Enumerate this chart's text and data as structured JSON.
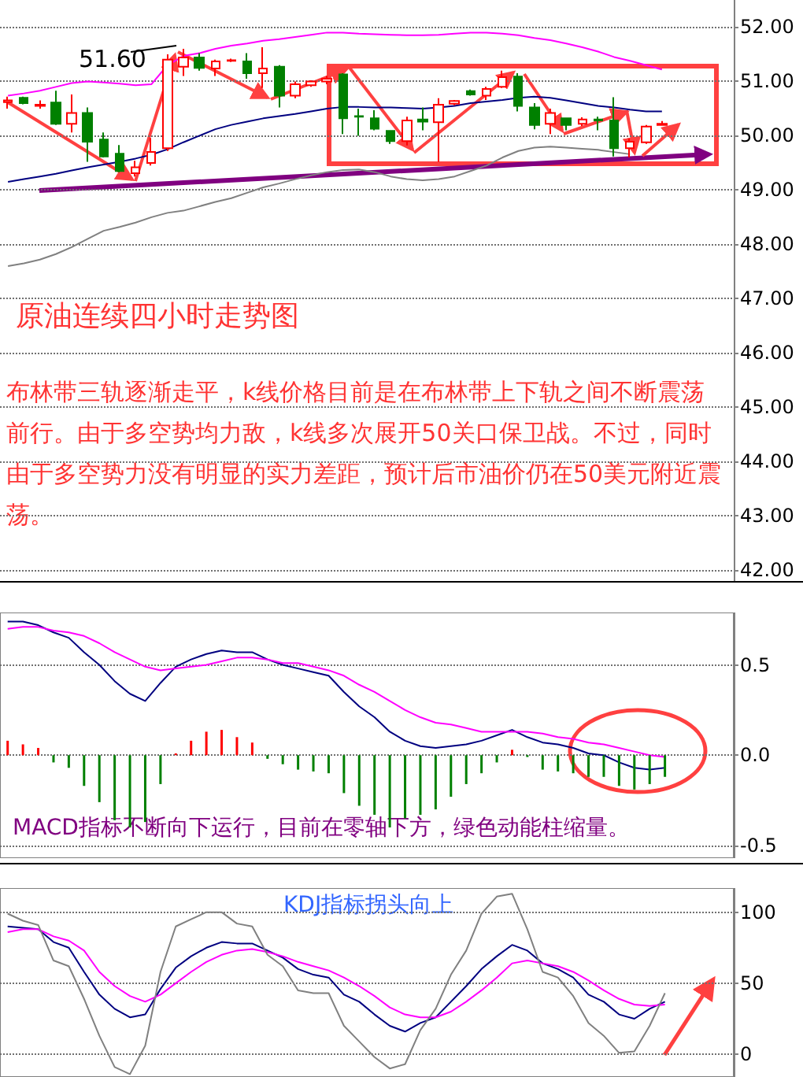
{
  "chart_data": [
    {
      "type": "candlestick",
      "title": "原油连续四小时走势图",
      "annotations": [
        "51.60",
        "布林带三轨逐渐走平，k线价格目前是在布林带上下轨之间不断震荡前行。由于多空势均力敌，k线多次展开50关口保卫战。不过，同时由于多空势力没有明显的实力差距，预计后市油价仍在50美元附近震荡。"
      ],
      "categories": [
        null,
        null,
        null,
        null,
        null,
        null,
        null,
        null,
        null,
        null,
        null,
        null,
        null,
        null,
        null,
        null,
        null,
        null,
        null,
        null,
        null,
        null,
        null,
        null,
        null,
        null,
        null,
        null,
        null,
        null,
        null,
        null,
        null,
        null,
        null,
        null,
        null,
        null,
        null,
        null,
        null,
        null
      ],
      "ohlc": [
        [
          50.62,
          50.72,
          50.5,
          50.65
        ],
        [
          50.7,
          50.72,
          50.58,
          50.6
        ],
        [
          50.55,
          50.65,
          50.5,
          50.57
        ],
        [
          50.61,
          50.83,
          50.2,
          50.22
        ],
        [
          50.22,
          50.76,
          50.06,
          50.42
        ],
        [
          50.42,
          50.52,
          49.52,
          49.89
        ],
        [
          49.93,
          50.06,
          49.6,
          49.62
        ],
        [
          49.67,
          49.83,
          49.33,
          49.35
        ],
        [
          49.31,
          49.54,
          49.25,
          49.42
        ],
        [
          49.5,
          49.96,
          49.45,
          49.7
        ],
        [
          49.77,
          51.5,
          49.72,
          51.4
        ],
        [
          51.27,
          51.6,
          51.1,
          51.44
        ],
        [
          51.44,
          51.52,
          51.2,
          51.25
        ],
        [
          51.24,
          51.4,
          51.1,
          51.37
        ],
        [
          51.38,
          51.42,
          51.36,
          51.39
        ],
        [
          51.37,
          51.52,
          51.05,
          51.15
        ],
        [
          51.15,
          51.63,
          50.88,
          51.24
        ],
        [
          51.27,
          51.3,
          50.52,
          50.74
        ],
        [
          50.74,
          51.0,
          50.69,
          50.95
        ],
        [
          50.93,
          51.02,
          50.9,
          51.0
        ],
        [
          51.0,
          51.1,
          50.95,
          51.05
        ],
        [
          51.13,
          51.15,
          50.03,
          50.32
        ],
        [
          50.36,
          50.5,
          50.0,
          50.35
        ],
        [
          50.32,
          50.47,
          50.1,
          50.13
        ],
        [
          50.09,
          50.1,
          49.85,
          49.9
        ],
        [
          49.9,
          50.35,
          49.82,
          50.28
        ],
        [
          50.3,
          50.52,
          50.1,
          50.26
        ],
        [
          50.25,
          50.69,
          49.52,
          50.57
        ],
        [
          50.59,
          50.66,
          50.56,
          50.64
        ],
        [
          50.82,
          50.85,
          50.74,
          50.76
        ],
        [
          50.74,
          50.9,
          50.66,
          50.86
        ],
        [
          50.9,
          51.2,
          50.88,
          51.08
        ],
        [
          51.09,
          51.15,
          50.45,
          50.55
        ],
        [
          50.52,
          50.6,
          50.12,
          50.2
        ],
        [
          50.22,
          50.5,
          50.03,
          50.42
        ],
        [
          50.32,
          50.33,
          50.1,
          50.2
        ],
        [
          50.22,
          50.34,
          50.18,
          50.3
        ],
        [
          50.3,
          50.35,
          50.1,
          50.28
        ],
        [
          50.28,
          50.71,
          49.62,
          49.77
        ],
        [
          49.77,
          49.95,
          49.6,
          49.89
        ],
        [
          49.88,
          50.2,
          49.85,
          50.17
        ],
        [
          50.2,
          50.27,
          50.2,
          50.22
        ]
      ],
      "colors": [
        "#ff0000",
        "#008000",
        "#ff0000",
        "#008000",
        "#ff0000",
        "#008000",
        "#008000",
        "#008000",
        "#ff0000",
        "#ff0000",
        "#ff0000",
        "#ff0000",
        "#008000",
        "#ff0000",
        "#ff0000",
        "#008000",
        "#ff0000",
        "#008000",
        "#ff0000",
        "#ff0000",
        "#ff0000",
        "#008000",
        "#008000",
        "#008000",
        "#008000",
        "#ff0000",
        "#008000",
        "#ff0000",
        "#ff0000",
        "#008000",
        "#ff0000",
        "#ff0000",
        "#008000",
        "#008000",
        "#ff0000",
        "#008000",
        "#ff0000",
        "#008000",
        "#008000",
        "#ff0000",
        "#ff0000",
        "#ff0000"
      ],
      "series": [
        {
          "type": "line",
          "color": "#ff00ff",
          "values": [
            50.74,
            50.78,
            50.83,
            50.9,
            50.97,
            51.0,
            50.98,
            50.96,
            50.93,
            50.95,
            51.3,
            51.47,
            51.52,
            51.6,
            51.66,
            51.7,
            51.75,
            51.78,
            51.82,
            51.86,
            51.9,
            51.9,
            51.88,
            51.87,
            51.86,
            51.85,
            51.85,
            51.86,
            51.88,
            51.9,
            51.9,
            51.88,
            51.85,
            51.8,
            51.76,
            51.7,
            51.63,
            51.55,
            51.45,
            51.38,
            51.3,
            51.22
          ]
        },
        {
          "type": "line",
          "color": "#000080",
          "values": [
            49.15,
            49.2,
            49.25,
            49.3,
            49.36,
            49.42,
            49.47,
            49.52,
            49.58,
            49.65,
            49.75,
            49.88,
            50.0,
            50.12,
            50.2,
            50.26,
            50.32,
            50.36,
            50.4,
            50.45,
            50.5,
            50.53,
            50.53,
            50.52,
            50.52,
            50.51,
            50.5,
            50.52,
            50.55,
            50.6,
            50.63,
            50.66,
            50.7,
            50.72,
            50.7,
            50.65,
            50.6,
            50.55,
            50.52,
            50.48,
            50.45,
            50.45
          ]
        },
        {
          "type": "line",
          "color": "#808080",
          "values": [
            47.6,
            47.65,
            47.72,
            47.82,
            47.95,
            48.1,
            48.25,
            48.32,
            48.4,
            48.5,
            48.58,
            48.62,
            48.7,
            48.78,
            48.85,
            48.95,
            49.05,
            49.12,
            49.2,
            49.27,
            49.33,
            49.37,
            49.38,
            49.33,
            49.25,
            49.2,
            49.18,
            49.2,
            49.25,
            49.35,
            49.45,
            49.6,
            49.72,
            49.78,
            49.8,
            49.78,
            49.76,
            49.74,
            49.7,
            49.66,
            null,
            null
          ]
        }
      ],
      "ylim": [
        41.8,
        52.5
      ],
      "yticks": [
        {
          "value": 42,
          "label": "42.00"
        },
        {
          "value": 43,
          "label": "43.00"
        },
        {
          "value": 44,
          "label": "44.00"
        },
        {
          "value": 45,
          "label": "45.00"
        },
        {
          "value": 46,
          "label": "46.00"
        },
        {
          "value": 47,
          "label": "47.00"
        },
        {
          "value": 48,
          "label": "48.00"
        },
        {
          "value": 49,
          "label": "49.00"
        },
        {
          "value": 50,
          "label": "50.00"
        },
        {
          "value": 51,
          "label": "51.00"
        },
        {
          "value": 52,
          "label": "52.00"
        }
      ],
      "grid": "y",
      "tick_labels": "y",
      "marker": "none"
    },
    {
      "type": "bar",
      "annotations": [
        "MACD指标不断向下运行，目前在零轴下方，绿色动能柱缩量。"
      ],
      "categories": [
        null,
        null,
        null,
        null,
        null,
        null,
        null,
        null,
        null,
        null,
        null,
        null,
        null,
        null,
        null,
        null,
        null,
        null,
        null,
        null,
        null,
        null,
        null,
        null,
        null,
        null,
        null,
        null,
        null,
        null,
        null,
        null,
        null,
        null,
        null,
        null,
        null,
        null,
        null,
        null,
        null,
        null,
        null,
        null
      ],
      "series": [
        {
          "values": [
            0.08,
            0.06,
            0.04,
            -0.04,
            -0.07,
            -0.17,
            -0.26,
            -0.36,
            -0.4,
            -0.37,
            -0.16,
            0.01,
            0.08,
            0.13,
            0.14,
            0.1,
            0.07,
            -0.02,
            -0.05,
            -0.08,
            -0.09,
            -0.1,
            -0.21,
            -0.28,
            -0.33,
            -0.4,
            -0.35,
            -0.33,
            -0.3,
            -0.23,
            -0.16,
            -0.1,
            -0.04,
            0.03,
            -0.01,
            -0.08,
            -0.09,
            -0.1,
            -0.12,
            -0.12,
            -0.17,
            -0.19,
            -0.16,
            -0.12
          ],
          "colors": [
            "#ff0000",
            "#ff0000",
            "#ff0000",
            "#008000",
            "#008000",
            "#008000",
            "#008000",
            "#008000",
            "#008000",
            "#008000",
            "#008000",
            "#ff0000",
            "#ff0000",
            "#ff0000",
            "#ff0000",
            "#ff0000",
            "#ff0000",
            "#008000",
            "#008000",
            "#008000",
            "#008000",
            "#008000",
            "#008000",
            "#008000",
            "#008000",
            "#008000",
            "#008000",
            "#008000",
            "#008000",
            "#008000",
            "#008000",
            "#008000",
            "#008000",
            "#ff0000",
            "#008000",
            "#008000",
            "#008000",
            "#008000",
            "#008000",
            "#008000",
            "#008000",
            "#008000",
            "#008000",
            "#008000"
          ]
        },
        {
          "type": "line",
          "color": "#000080",
          "values": [
            0.74,
            0.74,
            0.72,
            0.68,
            0.65,
            0.57,
            0.5,
            0.41,
            0.34,
            0.3,
            0.4,
            0.49,
            0.53,
            0.56,
            0.58,
            0.57,
            0.57,
            0.53,
            0.5,
            0.48,
            0.46,
            0.44,
            0.35,
            0.27,
            0.21,
            0.13,
            0.08,
            0.05,
            0.04,
            0.05,
            0.06,
            0.08,
            0.11,
            0.14,
            0.1,
            0.07,
            0.06,
            0.04,
            0.01,
            0.0,
            -0.04,
            -0.07,
            -0.08,
            -0.07
          ]
        },
        {
          "type": "line",
          "color": "#ff00ff",
          "values": [
            0.7,
            0.71,
            0.71,
            0.69,
            0.68,
            0.66,
            0.62,
            0.57,
            0.53,
            0.49,
            0.47,
            0.48,
            0.49,
            0.5,
            0.52,
            0.54,
            0.54,
            0.53,
            0.51,
            0.51,
            0.49,
            0.47,
            0.44,
            0.39,
            0.35,
            0.3,
            0.25,
            0.21,
            0.18,
            0.17,
            0.15,
            0.13,
            0.13,
            0.13,
            0.13,
            0.12,
            0.1,
            0.09,
            0.07,
            0.06,
            0.04,
            0.02,
            0.0,
            -0.01
          ]
        }
      ],
      "ylim": [
        -0.57,
        0.79
      ],
      "yticks": [
        {
          "value": -0.5,
          "label": "-0.5"
        },
        {
          "value": 0,
          "label": "0.0"
        },
        0.5
      ],
      "grid": "y",
      "tick_labels": "y",
      "marker": "none"
    },
    {
      "type": "line",
      "annotations": [
        "KDJ指标拐头向上"
      ],
      "categories": [
        null,
        null,
        null,
        null,
        null,
        null,
        null,
        null,
        null,
        null,
        null,
        null,
        null,
        null,
        null,
        null,
        null,
        null,
        null,
        null,
        null,
        null,
        null,
        null,
        null,
        null,
        null,
        null,
        null,
        null,
        null,
        null,
        null,
        null,
        null,
        null,
        null,
        null,
        null,
        null,
        null,
        null,
        null,
        null
      ],
      "series": [
        {
          "color": "#000080",
          "values": [
            90,
            89,
            88,
            79,
            75,
            58,
            42,
            32,
            26,
            28,
            46,
            61,
            69,
            75,
            79,
            78,
            78,
            73,
            68,
            60,
            56,
            54,
            42,
            37,
            28,
            20,
            16,
            22,
            26,
            37,
            48,
            60,
            69,
            77,
            73,
            64,
            60,
            54,
            42,
            37,
            28,
            25,
            32,
            37
          ]
        },
        {
          "color": "#ff00ff",
          "values": [
            86,
            88,
            88,
            83,
            80,
            73,
            58,
            48,
            41,
            37,
            42,
            50,
            58,
            65,
            70,
            73,
            74,
            72,
            69,
            65,
            62,
            59,
            54,
            48,
            41,
            33,
            28,
            26,
            26,
            30,
            37,
            45,
            54,
            64,
            66,
            64,
            62,
            58,
            52,
            45,
            39,
            35,
            34,
            35
          ]
        },
        {
          "color": "#808080",
          "values": [
            99,
            94,
            91,
            66,
            62,
            39,
            13,
            -9,
            -14,
            6,
            58,
            90,
            95,
            100,
            100,
            92,
            90,
            70,
            62,
            45,
            43,
            43,
            20,
            9,
            -2,
            -10,
            -7,
            17,
            32,
            56,
            73,
            99,
            111,
            113,
            88,
            58,
            54,
            41,
            22,
            13,
            1,
            2,
            20,
            43
          ]
        }
      ],
      "ylim": [
        -16,
        117
      ],
      "yticks": [
        0,
        50,
        100
      ],
      "grid": "y",
      "tick_labels": "y",
      "marker": "none"
    }
  ]
}
